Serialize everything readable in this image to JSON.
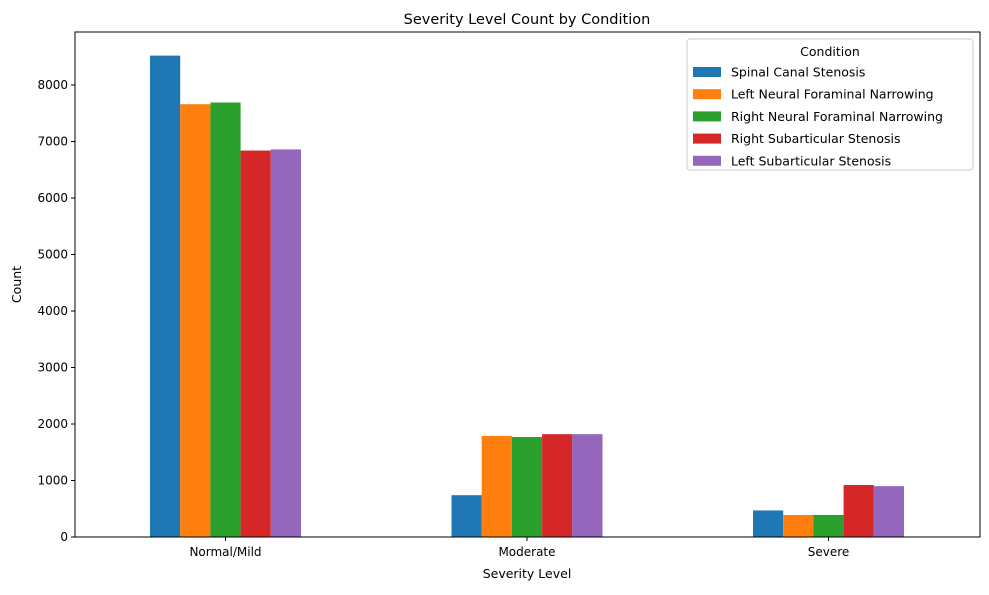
{
  "chart_data": {
    "type": "bar",
    "title": "Severity Level Count by Condition",
    "xlabel": "Severity Level",
    "ylabel": "Count",
    "categories": [
      "Normal/Mild",
      "Moderate",
      "Severe"
    ],
    "ylim": [
      0,
      8900
    ],
    "yticks": [
      0,
      1000,
      2000,
      3000,
      4000,
      5000,
      6000,
      7000,
      8000
    ],
    "grid": false,
    "legend": {
      "title": "Condition",
      "placement": "top-right"
    },
    "series": [
      {
        "name": "Spinal Canal Stenosis",
        "color": "#1f77b4",
        "values": [
          8520,
          740,
          470
        ]
      },
      {
        "name": "Left Neural Foraminal Narrowing",
        "color": "#ff7f0e",
        "values": [
          7660,
          1790,
          390
        ]
      },
      {
        "name": "Right Neural Foraminal Narrowing",
        "color": "#2ca02c",
        "values": [
          7690,
          1770,
          390
        ]
      },
      {
        "name": "Right Subarticular Stenosis",
        "color": "#d62728",
        "values": [
          6840,
          1820,
          920
        ]
      },
      {
        "name": "Left Subarticular Stenosis",
        "color": "#9467bd",
        "values": [
          6860,
          1820,
          900
        ]
      }
    ]
  }
}
